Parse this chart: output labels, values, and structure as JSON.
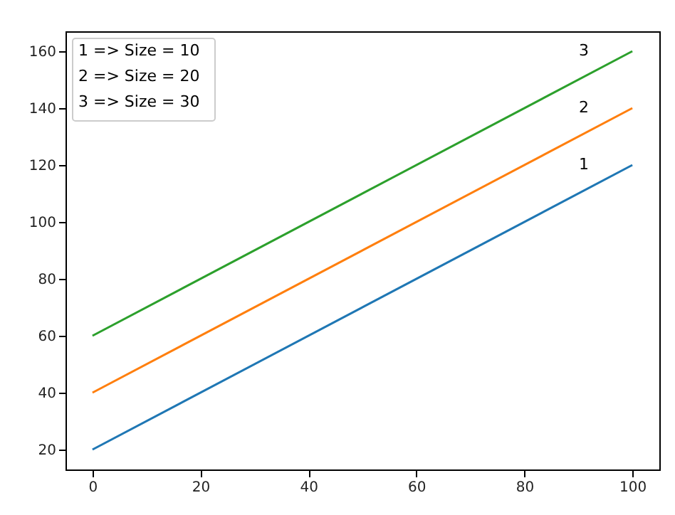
{
  "chart_data": {
    "type": "line",
    "x": [
      0,
      100
    ],
    "xlim": [
      -5,
      105
    ],
    "xticks": [
      0,
      20,
      40,
      60,
      80,
      100
    ],
    "ylim": [
      13,
      167
    ],
    "yticks": [
      20,
      40,
      60,
      80,
      100,
      120,
      140,
      160
    ],
    "series": [
      {
        "name": "1",
        "color": "#1f77b4",
        "values": [
          20,
          120
        ]
      },
      {
        "name": "2",
        "color": "#ff7f0e",
        "values": [
          40,
          140
        ]
      },
      {
        "name": "3",
        "color": "#2ca02c",
        "values": [
          60,
          160
        ]
      }
    ],
    "annotations": [
      "1 => Size = 10",
      "2 => Size = 20",
      "3 => Size = 30"
    ],
    "grid": false,
    "legend": false,
    "marker": "none",
    "line_style": "solid"
  }
}
